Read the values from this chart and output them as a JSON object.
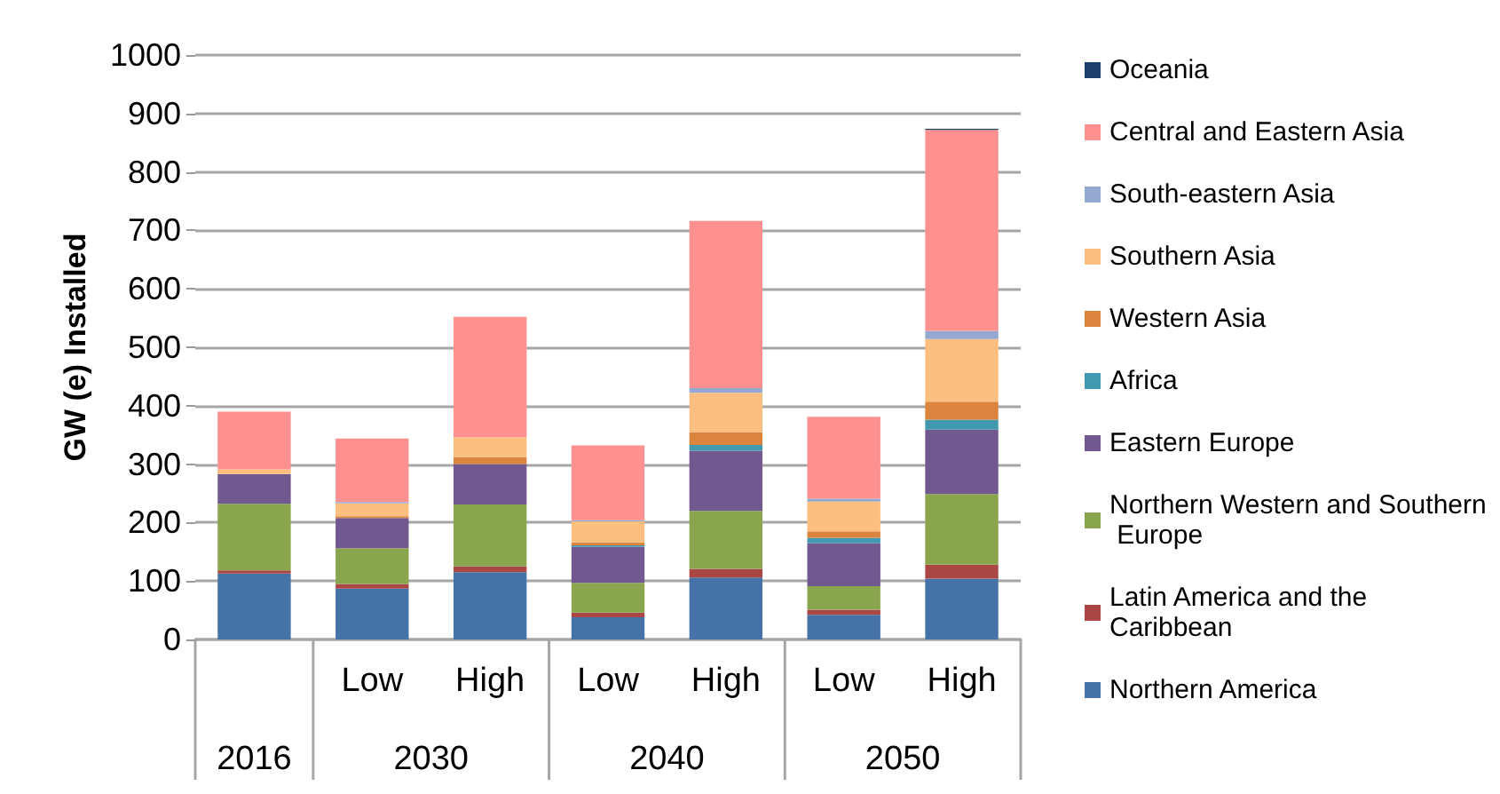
{
  "chart_data": {
    "type": "bar",
    "stacked": true,
    "ylabel": "GW (e) Installed",
    "categories": [
      null,
      "Low",
      "High",
      "Low",
      "High",
      "Low",
      "High"
    ],
    "annotations": [
      "2016",
      "2030",
      "2040",
      "2050"
    ],
    "ylim": [
      0,
      1000
    ],
    "yticks": [
      0,
      100,
      200,
      300,
      400,
      500,
      600,
      700,
      800,
      900,
      1000
    ],
    "grid": "y",
    "legend": "right",
    "series": [
      {
        "name": "Northern America",
        "color": "#4572a7",
        "values": [
          113,
          87,
          115,
          38,
          106,
          42,
          104
        ]
      },
      {
        "name": "Latin America and the Caribbean",
        "color": "#aa4643",
        "values": [
          5,
          8,
          10,
          8,
          15,
          9,
          24
        ]
      },
      {
        "name": "Northern Western and Southern Europe",
        "color": "#89a54e",
        "values": [
          114,
          61,
          106,
          51,
          99,
          40,
          121
        ]
      },
      {
        "name": "Eastern Europe",
        "color": "#71588f",
        "values": [
          51,
          52,
          69,
          62,
          103,
          74,
          110
        ]
      },
      {
        "name": "Africa",
        "color": "#4198af",
        "values": [
          0,
          0,
          0,
          2,
          10,
          9,
          17
        ]
      },
      {
        "name": "Western Asia",
        "color": "#db843d",
        "values": [
          0,
          3,
          12,
          5,
          22,
          11,
          31
        ]
      },
      {
        "name": "Southern Asia",
        "color": "#fdbf7f",
        "values": [
          8,
          22,
          34,
          36,
          67,
          51,
          107
        ]
      },
      {
        "name": "South-eastern Asia",
        "color": "#93a9cf",
        "values": [
          null,
          2,
          null,
          2,
          8,
          5,
          14
        ]
      },
      {
        "name": "Central and Eastern Asia",
        "color": "#ff9090",
        "values": [
          99,
          109,
          206,
          128,
          286,
          140,
          344
        ]
      },
      {
        "name": "Oceania",
        "color": "#1f3f6b",
        "values": [
          0,
          0,
          0,
          0,
          0,
          0,
          2
        ]
      }
    ]
  }
}
